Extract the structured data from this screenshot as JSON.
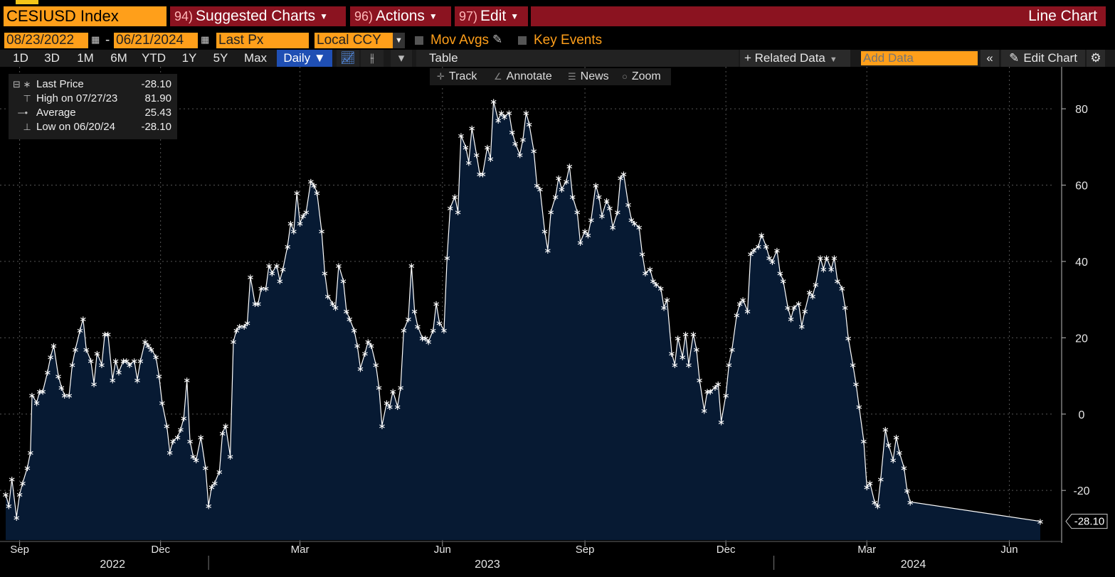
{
  "header": {
    "ticker": "CESIUSD Index",
    "menus": [
      {
        "num": "94)",
        "label": "Suggested Charts"
      },
      {
        "num": "96)",
        "label": "Actions"
      },
      {
        "num": "97)",
        "label": "Edit"
      }
    ],
    "view_title": "Line Chart"
  },
  "controls": {
    "start_date": "08/23/2022",
    "end_date": "06/21/2024",
    "field": "Last Px",
    "currency": "Local CCY",
    "mov_avgs_label": "Mov Avgs",
    "key_events_label": "Key Events"
  },
  "range_tabs": [
    "1D",
    "3D",
    "1M",
    "6M",
    "YTD",
    "1Y",
    "5Y",
    "Max"
  ],
  "frequency": "Daily ▼",
  "table_label": "Table",
  "related_data_label": "+ Related Data",
  "add_data_placeholder": "Add Data",
  "collapse_label": "«",
  "edit_chart_label": "Edit Chart",
  "chart_tools": [
    "Track",
    "Annotate",
    "News",
    "Zoom"
  ],
  "legend": [
    {
      "symbol": "∗",
      "label": "Last Price",
      "value": "-28.10"
    },
    {
      "symbol": "⊤",
      "label": "High on 07/27/23",
      "value": "81.90"
    },
    {
      "symbol": "•",
      "label": "Average",
      "value": "25.43"
    },
    {
      "symbol": "⊥",
      "label": "Low on 06/20/24",
      "value": "-28.10"
    }
  ],
  "last_value_tag": "-28.10",
  "chart_data": {
    "type": "area",
    "series": [
      {
        "name": "Last Price",
        "color": "#ffffff",
        "fill": "#071a33"
      }
    ],
    "x_start": "2022-08-23",
    "x_end": "2024-06-21",
    "ylim": [
      -33,
      91
    ],
    "yticks": [
      80,
      60,
      40,
      20,
      0,
      -20
    ],
    "xtick_labels": [
      "Sep",
      "Dec",
      "Mar",
      "Jun",
      "Sep",
      "Dec",
      "Mar",
      "Jun"
    ],
    "xtick_dates": [
      "2022-09-01",
      "2022-12-01",
      "2023-03-01",
      "2023-06-01",
      "2023-09-01",
      "2023-12-01",
      "2024-03-01",
      "2024-06-01"
    ],
    "year_labels": [
      "2022",
      "2023",
      "2024"
    ],
    "year_label_dates": [
      "2022-10-31",
      "2023-06-30",
      "2024-03-31"
    ],
    "year_divider_dates": [
      "2023-01-01",
      "2024-01-01"
    ],
    "grid": true,
    "points": [
      [
        "2022-08-23",
        -21
      ],
      [
        "2022-08-25",
        -24
      ],
      [
        "2022-08-27",
        -17
      ],
      [
        "2022-08-30",
        -27
      ],
      [
        "2022-09-01",
        -21
      ],
      [
        "2022-09-03",
        -18
      ],
      [
        "2022-09-06",
        -14
      ],
      [
        "2022-09-08",
        -10
      ],
      [
        "2022-09-09",
        5
      ],
      [
        "2022-09-12",
        3
      ],
      [
        "2022-09-14",
        6
      ],
      [
        "2022-09-16",
        6
      ],
      [
        "2022-09-19",
        11
      ],
      [
        "2022-09-21",
        15
      ],
      [
        "2022-09-23",
        18
      ],
      [
        "2022-09-26",
        10
      ],
      [
        "2022-09-28",
        7
      ],
      [
        "2022-09-30",
        5
      ],
      [
        "2022-10-03",
        5
      ],
      [
        "2022-10-05",
        13
      ],
      [
        "2022-10-07",
        17
      ],
      [
        "2022-10-10",
        22
      ],
      [
        "2022-10-12",
        25
      ],
      [
        "2022-10-14",
        17
      ],
      [
        "2022-10-17",
        14
      ],
      [
        "2022-10-19",
        8
      ],
      [
        "2022-10-21",
        16
      ],
      [
        "2022-10-24",
        13
      ],
      [
        "2022-10-26",
        21
      ],
      [
        "2022-10-28",
        21
      ],
      [
        "2022-10-31",
        9
      ],
      [
        "2022-11-02",
        14
      ],
      [
        "2022-11-04",
        11
      ],
      [
        "2022-11-07",
        14
      ],
      [
        "2022-11-09",
        14
      ],
      [
        "2022-11-11",
        13
      ],
      [
        "2022-11-14",
        14
      ],
      [
        "2022-11-16",
        9
      ],
      [
        "2022-11-18",
        14
      ],
      [
        "2022-11-21",
        19
      ],
      [
        "2022-11-23",
        18
      ],
      [
        "2022-11-25",
        17
      ],
      [
        "2022-11-28",
        15
      ],
      [
        "2022-11-30",
        10
      ],
      [
        "2022-12-02",
        3
      ],
      [
        "2022-12-05",
        -3
      ],
      [
        "2022-12-07",
        -10
      ],
      [
        "2022-12-09",
        -7
      ],
      [
        "2022-12-12",
        -6
      ],
      [
        "2022-12-14",
        -4
      ],
      [
        "2022-12-16",
        -1
      ],
      [
        "2022-12-18",
        9
      ],
      [
        "2022-12-20",
        -7
      ],
      [
        "2022-12-22",
        -11
      ],
      [
        "2022-12-24",
        -12
      ],
      [
        "2022-12-27",
        -6
      ],
      [
        "2022-12-30",
        -14
      ],
      [
        "2023-01-01",
        -24
      ],
      [
        "2023-01-03",
        -19
      ],
      [
        "2023-01-05",
        -18
      ],
      [
        "2023-01-08",
        -15
      ],
      [
        "2023-01-10",
        -5
      ],
      [
        "2023-01-12",
        -3
      ],
      [
        "2023-01-15",
        -11
      ],
      [
        "2023-01-17",
        19
      ],
      [
        "2023-01-19",
        22
      ],
      [
        "2023-01-21",
        23
      ],
      [
        "2023-01-24",
        23
      ],
      [
        "2023-01-26",
        24
      ],
      [
        "2023-01-28",
        36
      ],
      [
        "2023-01-31",
        29
      ],
      [
        "2023-02-02",
        29
      ],
      [
        "2023-02-04",
        33
      ],
      [
        "2023-02-07",
        33
      ],
      [
        "2023-02-09",
        39
      ],
      [
        "2023-02-11",
        37
      ],
      [
        "2023-02-14",
        39
      ],
      [
        "2023-02-16",
        35
      ],
      [
        "2023-02-18",
        38
      ],
      [
        "2023-02-21",
        44
      ],
      [
        "2023-02-23",
        50
      ],
      [
        "2023-02-25",
        48
      ],
      [
        "2023-02-27",
        58
      ],
      [
        "2023-03-01",
        50
      ],
      [
        "2023-03-03",
        52
      ],
      [
        "2023-03-05",
        53
      ],
      [
        "2023-03-08",
        61
      ],
      [
        "2023-03-10",
        60
      ],
      [
        "2023-03-12",
        58
      ],
      [
        "2023-03-15",
        48
      ],
      [
        "2023-03-17",
        37
      ],
      [
        "2023-03-19",
        31
      ],
      [
        "2023-03-22",
        29
      ],
      [
        "2023-03-24",
        28
      ],
      [
        "2023-03-26",
        39
      ],
      [
        "2023-03-29",
        35
      ],
      [
        "2023-03-31",
        27
      ],
      [
        "2023-04-02",
        25
      ],
      [
        "2023-04-05",
        22
      ],
      [
        "2023-04-07",
        18
      ],
      [
        "2023-04-09",
        12
      ],
      [
        "2023-04-12",
        16
      ],
      [
        "2023-04-14",
        19
      ],
      [
        "2023-04-16",
        18
      ],
      [
        "2023-04-19",
        13
      ],
      [
        "2023-04-21",
        7
      ],
      [
        "2023-04-23",
        -3
      ],
      [
        "2023-04-26",
        3
      ],
      [
        "2023-04-28",
        2
      ],
      [
        "2023-04-30",
        6
      ],
      [
        "2023-05-03",
        2
      ],
      [
        "2023-05-05",
        7
      ],
      [
        "2023-05-07",
        22
      ],
      [
        "2023-05-10",
        25
      ],
      [
        "2023-05-12",
        39
      ],
      [
        "2023-05-14",
        27
      ],
      [
        "2023-05-16",
        23
      ],
      [
        "2023-05-19",
        20
      ],
      [
        "2023-05-21",
        20
      ],
      [
        "2023-05-23",
        19
      ],
      [
        "2023-05-26",
        22
      ],
      [
        "2023-05-28",
        29
      ],
      [
        "2023-05-30",
        24
      ],
      [
        "2023-06-02",
        22
      ],
      [
        "2023-06-04",
        41
      ],
      [
        "2023-06-06",
        54
      ],
      [
        "2023-06-09",
        57
      ],
      [
        "2023-06-11",
        53
      ],
      [
        "2023-06-13",
        73
      ],
      [
        "2023-06-16",
        70
      ],
      [
        "2023-06-18",
        66
      ],
      [
        "2023-06-20",
        75
      ],
      [
        "2023-06-23",
        68
      ],
      [
        "2023-06-25",
        63
      ],
      [
        "2023-06-27",
        63
      ],
      [
        "2023-06-30",
        70
      ],
      [
        "2023-07-02",
        67
      ],
      [
        "2023-07-04",
        82
      ],
      [
        "2023-07-07",
        77
      ],
      [
        "2023-07-09",
        79
      ],
      [
        "2023-07-11",
        78
      ],
      [
        "2023-07-14",
        79
      ],
      [
        "2023-07-16",
        74
      ],
      [
        "2023-07-18",
        71
      ],
      [
        "2023-07-21",
        68
      ],
      [
        "2023-07-23",
        72
      ],
      [
        "2023-07-25",
        79
      ],
      [
        "2023-07-27",
        76
      ],
      [
        "2023-07-30",
        69
      ],
      [
        "2023-08-01",
        60
      ],
      [
        "2023-08-03",
        59
      ],
      [
        "2023-08-06",
        48
      ],
      [
        "2023-08-08",
        43
      ],
      [
        "2023-08-10",
        53
      ],
      [
        "2023-08-13",
        57
      ],
      [
        "2023-08-15",
        62
      ],
      [
        "2023-08-17",
        59
      ],
      [
        "2023-08-20",
        61
      ],
      [
        "2023-08-22",
        65
      ],
      [
        "2023-08-24",
        57
      ],
      [
        "2023-08-27",
        53
      ],
      [
        "2023-08-29",
        45
      ],
      [
        "2023-09-01",
        48
      ],
      [
        "2023-09-03",
        47
      ],
      [
        "2023-09-05",
        51
      ],
      [
        "2023-09-08",
        60
      ],
      [
        "2023-09-10",
        57
      ],
      [
        "2023-09-12",
        52
      ],
      [
        "2023-09-15",
        56
      ],
      [
        "2023-09-17",
        54
      ],
      [
        "2023-09-19",
        49
      ],
      [
        "2023-09-22",
        53
      ],
      [
        "2023-09-24",
        62
      ],
      [
        "2023-09-26",
        63
      ],
      [
        "2023-09-29",
        55
      ],
      [
        "2023-10-01",
        51
      ],
      [
        "2023-10-03",
        50
      ],
      [
        "2023-10-06",
        49
      ],
      [
        "2023-10-08",
        42
      ],
      [
        "2023-10-10",
        37
      ],
      [
        "2023-10-13",
        38
      ],
      [
        "2023-10-15",
        35
      ],
      [
        "2023-10-17",
        34
      ],
      [
        "2023-10-20",
        33
      ],
      [
        "2023-10-22",
        28
      ],
      [
        "2023-10-24",
        30
      ],
      [
        "2023-10-27",
        16
      ],
      [
        "2023-10-29",
        13
      ],
      [
        "2023-10-31",
        20
      ],
      [
        "2023-11-03",
        15
      ],
      [
        "2023-11-05",
        21
      ],
      [
        "2023-11-07",
        13
      ],
      [
        "2023-11-10",
        21
      ],
      [
        "2023-11-12",
        17
      ],
      [
        "2023-11-14",
        9
      ],
      [
        "2023-11-17",
        1
      ],
      [
        "2023-11-19",
        6
      ],
      [
        "2023-11-21",
        6
      ],
      [
        "2023-11-24",
        7
      ],
      [
        "2023-11-26",
        8
      ],
      [
        "2023-11-28",
        -2
      ],
      [
        "2023-12-01",
        5
      ],
      [
        "2023-12-03",
        13
      ],
      [
        "2023-12-05",
        17
      ],
      [
        "2023-12-08",
        26
      ],
      [
        "2023-12-10",
        29
      ],
      [
        "2023-12-12",
        30
      ],
      [
        "2023-12-15",
        27
      ],
      [
        "2023-12-17",
        42
      ],
      [
        "2023-12-19",
        43
      ],
      [
        "2023-12-22",
        44
      ],
      [
        "2023-12-24",
        47
      ],
      [
        "2023-12-27",
        44
      ],
      [
        "2023-12-29",
        41
      ],
      [
        "2023-12-31",
        40
      ],
      [
        "2024-01-03",
        43
      ],
      [
        "2024-01-05",
        37
      ],
      [
        "2024-01-07",
        35
      ],
      [
        "2024-01-10",
        28
      ],
      [
        "2024-01-12",
        25
      ],
      [
        "2024-01-14",
        28
      ],
      [
        "2024-01-17",
        29
      ],
      [
        "2024-01-19",
        23
      ],
      [
        "2024-01-21",
        27
      ],
      [
        "2024-01-24",
        32
      ],
      [
        "2024-01-26",
        31
      ],
      [
        "2024-01-28",
        34
      ],
      [
        "2024-01-31",
        41
      ],
      [
        "2024-02-02",
        38
      ],
      [
        "2024-02-04",
        41
      ],
      [
        "2024-02-07",
        38
      ],
      [
        "2024-02-09",
        41
      ],
      [
        "2024-02-11",
        35
      ],
      [
        "2024-02-14",
        33
      ],
      [
        "2024-02-16",
        28
      ],
      [
        "2024-02-18",
        20
      ],
      [
        "2024-02-21",
        13
      ],
      [
        "2024-02-23",
        8
      ],
      [
        "2024-02-25",
        2
      ],
      [
        "2024-02-28",
        -7
      ],
      [
        "2024-03-01",
        -19
      ],
      [
        "2024-03-03",
        -18
      ],
      [
        "2024-03-06",
        -23
      ],
      [
        "2024-03-08",
        -24
      ],
      [
        "2024-03-10",
        -17
      ],
      [
        "2024-03-13",
        -4
      ],
      [
        "2024-03-15",
        -8
      ],
      [
        "2024-03-18",
        -12
      ],
      [
        "2024-03-20",
        -6
      ],
      [
        "2024-03-22",
        -10
      ],
      [
        "2024-03-25",
        -14
      ],
      [
        "2024-03-27",
        -20
      ],
      [
        "2024-03-29",
        -23
      ],
      [
        "2024-06-21",
        -28.1
      ]
    ]
  }
}
